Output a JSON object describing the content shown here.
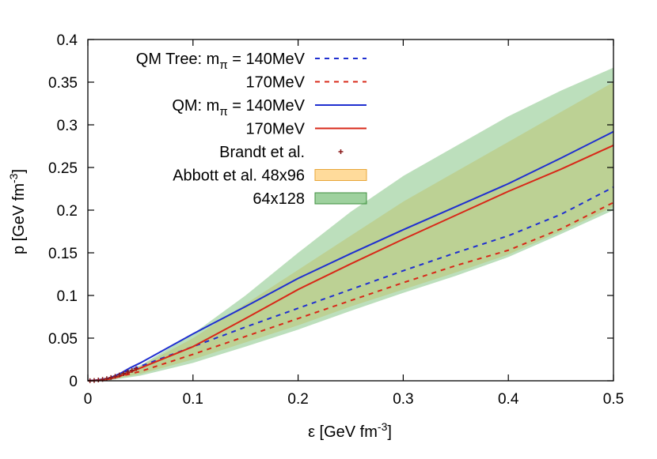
{
  "chart_data": {
    "type": "line",
    "xlabel": "ε [GeV fm",
    "xlabel_sup": "-3",
    "xlabel_end": "]",
    "ylabel": "p [GeV fm",
    "ylabel_sup": "-3",
    "ylabel_end": "]",
    "xlim": [
      0,
      0.5
    ],
    "ylim": [
      0,
      0.4
    ],
    "xticks": [
      0,
      0.1,
      0.2,
      0.3,
      0.4,
      0.5
    ],
    "xtick_labels": [
      "0",
      "0.1",
      "0.2",
      "0.3",
      "0.4",
      "0.5"
    ],
    "yticks": [
      0,
      0.05,
      0.1,
      0.15,
      0.2,
      0.25,
      0.3,
      0.35,
      0.4
    ],
    "ytick_labels": [
      "0",
      "0.05",
      "0.1",
      "0.15",
      "0.2",
      "0.25",
      "0.3",
      "0.35",
      "0.4"
    ],
    "grid": false,
    "legend_position": "top-left",
    "series": [
      {
        "legend": "QM Tree: m",
        "legend_sub": "π",
        "legend_tail": " = 140MeV",
        "style": "dashed",
        "color": "#1f2fd0",
        "x": [
          0,
          0.01,
          0.02,
          0.03,
          0.05,
          0.1,
          0.15,
          0.2,
          0.25,
          0.3,
          0.35,
          0.4,
          0.45,
          0.5
        ],
        "y": [
          0,
          0.001,
          0.003,
          0.008,
          0.017,
          0.04,
          0.063,
          0.085,
          0.107,
          0.129,
          0.15,
          0.17,
          0.195,
          0.227
        ]
      },
      {
        "legend": "170MeV",
        "style": "dashed",
        "color": "#d82818",
        "x": [
          0,
          0.01,
          0.02,
          0.03,
          0.05,
          0.1,
          0.15,
          0.2,
          0.25,
          0.3,
          0.35,
          0.4,
          0.45,
          0.5
        ],
        "y": [
          0,
          0.0005,
          0.002,
          0.005,
          0.011,
          0.031,
          0.052,
          0.073,
          0.094,
          0.115,
          0.135,
          0.153,
          0.178,
          0.209
        ]
      },
      {
        "legend": "QM: m",
        "legend_sub": "π",
        "legend_tail": " = 140MeV",
        "style": "solid",
        "color": "#1f2fd0",
        "x": [
          0,
          0.01,
          0.02,
          0.03,
          0.04,
          0.05,
          0.1,
          0.15,
          0.2,
          0.25,
          0.3,
          0.35,
          0.4,
          0.45,
          0.5
        ],
        "y": [
          0,
          0.001,
          0.003,
          0.008,
          0.015,
          0.021,
          0.055,
          0.087,
          0.12,
          0.149,
          0.177,
          0.204,
          0.231,
          0.261,
          0.292
        ]
      },
      {
        "legend": "170MeV",
        "style": "solid",
        "color": "#d82818",
        "x": [
          0,
          0.01,
          0.02,
          0.03,
          0.04,
          0.05,
          0.1,
          0.15,
          0.2,
          0.25,
          0.3,
          0.35,
          0.4,
          0.45,
          0.5
        ],
        "y": [
          0,
          0.0005,
          0.002,
          0.005,
          0.01,
          0.015,
          0.04,
          0.073,
          0.107,
          0.137,
          0.166,
          0.194,
          0.222,
          0.248,
          0.276
        ]
      }
    ],
    "points": {
      "legend": "Brandt et al.",
      "color": "#8b1c1c",
      "x": [
        0.002,
        0.006,
        0.01,
        0.014,
        0.018,
        0.022,
        0.026,
        0.03,
        0.034,
        0.038,
        0.042,
        0.046
      ],
      "y": [
        0.0001,
        0.0004,
        0.0009,
        0.0016,
        0.0026,
        0.0038,
        0.0052,
        0.0068,
        0.0085,
        0.0103,
        0.0122,
        0.0142
      ]
    },
    "bands": [
      {
        "legend": "Abbott et al. 48x96",
        "fill": "#ffcf7a",
        "stroke": "#e8a73a",
        "opacity": 0.55,
        "x": [
          0.02,
          0.05,
          0.1,
          0.15,
          0.2,
          0.25,
          0.3,
          0.35,
          0.4,
          0.45,
          0.5
        ],
        "lower": [
          0.001,
          0.008,
          0.025,
          0.045,
          0.065,
          0.087,
          0.107,
          0.127,
          0.148,
          0.175,
          0.204
        ],
        "upper": [
          0.004,
          0.017,
          0.05,
          0.09,
          0.13,
          0.17,
          0.21,
          0.245,
          0.28,
          0.315,
          0.35
        ]
      },
      {
        "legend": "64x128",
        "fill": "#6ab86a",
        "stroke": "#3f8f3f",
        "opacity": 0.45,
        "x": [
          0.02,
          0.05,
          0.1,
          0.15,
          0.2,
          0.25,
          0.3,
          0.35,
          0.4,
          0.45,
          0.5
        ],
        "lower": [
          0.0005,
          0.006,
          0.021,
          0.04,
          0.06,
          0.082,
          0.103,
          0.123,
          0.145,
          0.172,
          0.2
        ],
        "upper": [
          0.004,
          0.018,
          0.055,
          0.1,
          0.15,
          0.198,
          0.24,
          0.275,
          0.31,
          0.34,
          0.367
        ]
      }
    ]
  }
}
